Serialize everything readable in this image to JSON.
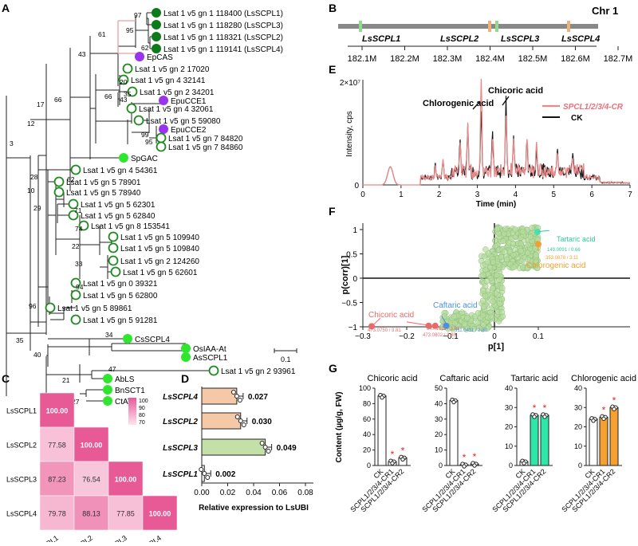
{
  "panels": {
    "a": "A",
    "b": "B",
    "c": "C",
    "d": "D",
    "e": "E",
    "f": "F",
    "g": "G"
  },
  "colors": {
    "dark_green": "#0f7a1a",
    "green": "#2ee62e",
    "purple": "#9933ee",
    "open_green": "#1e8a1e",
    "pink": "#e8a0a0",
    "lncr": "#e88a8a"
  },
  "tree": {
    "leaves": [
      {
        "label": "Lsat 1 v5 gn 1 118400  (LsSCPL1)",
        "mark": "dark"
      },
      {
        "label": "Lsat 1 v5 gn 1 118280 (LsSCPL3)",
        "mark": "dark"
      },
      {
        "label": "Lsat 1 v5 gn 1 118321 (LsSCPL2)",
        "mark": "dark"
      },
      {
        "label": "Lsat 1 v5 gn 1 119141 (LsSCPL4)",
        "mark": "dark"
      },
      {
        "label": "EpCAS",
        "mark": "purple"
      },
      {
        "label": "Lsat 1 v5 gn 2 17020",
        "mark": "open"
      },
      {
        "label": "Lsat 1 v5 gn 4 32141",
        "mark": "open"
      },
      {
        "label": "Lsat 1 v5 gn 2 34201",
        "mark": "open"
      },
      {
        "label": "EpuCCE1",
        "mark": "purple"
      },
      {
        "label": "Lsat 1 v5 gn 4 32061",
        "mark": "open"
      },
      {
        "label": "Lsat 1 v5 gn 5 59080",
        "mark": "open"
      },
      {
        "label": "EpuCCE2",
        "mark": "purple"
      },
      {
        "label": "Lsat 1 v5 gn 7 84820",
        "mark": "open"
      },
      {
        "label": "Lsat 1 v5 gn 7 84860",
        "mark": "open"
      },
      {
        "label": "SpGAC",
        "mark": "green"
      },
      {
        "label": "Lsat 1 v5 gn 4 54361",
        "mark": "open"
      },
      {
        "label": "Lsat 1 v5 gn 5 78901",
        "mark": "open"
      },
      {
        "label": "Lsat 1 v5 gn 5 78940",
        "mark": "open"
      },
      {
        "label": "Lsat 1 v5 gn 5 62301",
        "mark": "open"
      },
      {
        "label": "Lsat 1 v5 gn 5 62840",
        "mark": "open"
      },
      {
        "label": "Lsat 1 v5 gn 8 153541",
        "mark": "open"
      },
      {
        "label": "Lsat 1 v5 gn 5 109940",
        "mark": "open"
      },
      {
        "label": "Lsat 1 v5 gn 5 109840",
        "mark": "open"
      },
      {
        "label": "Lsat 1 v5 gn 2 124260",
        "mark": "open"
      },
      {
        "label": "Lsat 1 v5 gn 5 62601",
        "mark": "open"
      },
      {
        "label": "Lsat 1 v5 gn 0 39321",
        "mark": "open"
      },
      {
        "label": "Lsat 1 v5 gn 5 62800",
        "mark": "open"
      },
      {
        "label": "Lsat 1 v5 gn 5 89861",
        "mark": "open"
      },
      {
        "label": "Lsat 1 v5 gn 5 91281",
        "mark": "open"
      },
      {
        "label": "CsSCPL4",
        "mark": "green"
      },
      {
        "label": "OsIAA-At",
        "mark": "green"
      },
      {
        "label": "AsSCPL1",
        "mark": "green"
      },
      {
        "label": "Lsat 1 v5 gn 2 93961",
        "mark": "open"
      },
      {
        "label": "AbLS",
        "mark": "green"
      },
      {
        "label": "BnSCT1",
        "mark": "green"
      },
      {
        "label": "CtAT1",
        "mark": "green"
      }
    ],
    "bootstrap": [
      "97",
      "95",
      "62",
      "61",
      "43",
      "66",
      "20",
      "35",
      "43",
      "66",
      "99",
      "95",
      "17",
      "12",
      "3",
      "28",
      "62",
      "10",
      "29",
      "71",
      "74",
      "22",
      "33",
      "94",
      "96",
      "34",
      "35",
      "40",
      "47",
      "21",
      "27"
    ],
    "scale": "0.1"
  },
  "chrom": {
    "title": "Chr 1",
    "genes": [
      "LsSCPL1",
      "LsSCPL2",
      "LsSCPL3",
      "LsSCPL4"
    ],
    "ticks": [
      "182.1M",
      "182.2M",
      "182.3M",
      "182.4M",
      "182.5M",
      "182.6M",
      "182.7M"
    ]
  },
  "heatmap": {
    "rows": [
      "LsSCPL1",
      "LsSCPL2",
      "LsSCPL3",
      "LsSCPL4"
    ],
    "values": [
      [
        "100.00"
      ],
      [
        "77.58",
        "100.00"
      ],
      [
        "87.23",
        "76.54",
        "100.00"
      ],
      [
        "79.78",
        "88.13",
        "77.85",
        "100.00"
      ]
    ],
    "legend": [
      "100",
      "90",
      "80",
      "70"
    ]
  },
  "chart_data": [
    {
      "type": "bar",
      "id": "D",
      "categories": [
        "LsSCPL4",
        "LsSCPL2",
        "LsSCPL3",
        "LsSCPL1"
      ],
      "values": [
        0.027,
        0.03,
        0.049,
        0.002
      ],
      "value_labels": [
        "0.027",
        "0.030",
        "0.049",
        "0.002"
      ],
      "xlabel": "Relative expression to LsUBI",
      "xticks": [
        "0.00",
        "0.02",
        "0.04",
        "0.06",
        "0.08"
      ],
      "xlim": [
        0,
        0.08
      ]
    },
    {
      "type": "line",
      "id": "E",
      "ylabel": "Intensity, cps",
      "xlabel": "Time (min)",
      "ymax_label": "2×10⁷",
      "y_ticks": [
        "0"
      ],
      "x_ticks": [
        "0",
        "1",
        "2",
        "3",
        "4",
        "5",
        "6",
        "7"
      ],
      "series": [
        {
          "name": "SPCL1/2/3/4-CR"
        },
        {
          "name": "CK"
        }
      ],
      "annotations": [
        "Chlorogenic acid",
        "Chicoric acid"
      ]
    },
    {
      "type": "scatter",
      "id": "F",
      "xlabel": "p[1]",
      "ylabel": "p(corr)[1]",
      "x_ticks": [
        "−0.3",
        "−0.2",
        "−0.1",
        "0",
        "0.1"
      ],
      "y_ticks": [
        "1",
        "0.5",
        "0",
        "−0.5",
        "−1"
      ],
      "labels": {
        "tartaric": "Tartaric acid",
        "tartaric_id": "149.0091 / 0.66",
        "chlorogenic": "Chlorogenic acid",
        "chlorogenic_id": "353.0878 / 3.11",
        "chicoric": "Chicoric acid",
        "chicoric_id1": "473.0750 / 3.81",
        "chicoric_id2": "947.1611 / 3.81",
        "chicoric_id3": "473.0802 / 3.80",
        "caftaric": "Caftaric acid",
        "caftaric_id": "311.0411 / 2.80"
      }
    },
    {
      "type": "bar",
      "id": "G",
      "ylabel": "Content (µg/g, FW)",
      "categories": [
        "CK",
        "SCPL1/2/3/4-CR1",
        "SCPL1/2/3/4-CR2"
      ],
      "groups": [
        {
          "title": "Chicoric acid",
          "values": [
            90,
            5,
            10
          ],
          "ymax": 100,
          "ticks": [
            "0",
            "20",
            "40",
            "60",
            "80",
            "100"
          ],
          "color": "#ffffff"
        },
        {
          "title": "Caftaric acid",
          "values": [
            42,
            0.5,
            1
          ],
          "ymax": 50,
          "ticks": [
            "0",
            "10",
            "20",
            "30",
            "40",
            "50"
          ],
          "color": "#ffffff"
        },
        {
          "title": "Tartaric acid",
          "values": [
            2,
            26,
            26
          ],
          "ymax": 40,
          "ticks": [
            "0",
            "10",
            "20",
            "30",
            "40"
          ],
          "color": "#2ee6a8"
        },
        {
          "title": "Chlorogenic acid",
          "values": [
            24,
            25,
            30
          ],
          "ymax": 40,
          "ticks": [
            "0",
            "10",
            "20",
            "30",
            "40"
          ],
          "color": "#f5a030"
        }
      ],
      "star": "*"
    }
  ]
}
